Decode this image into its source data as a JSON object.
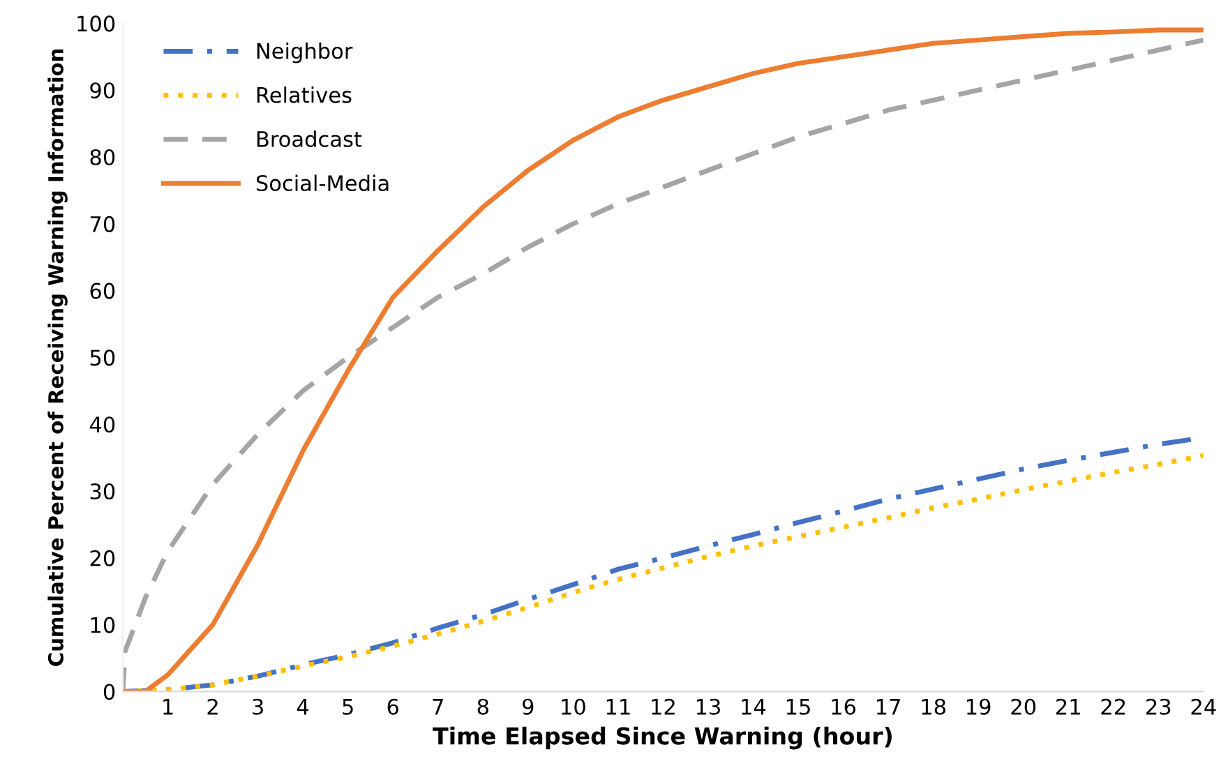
{
  "chart_data": {
    "type": "line",
    "xlabel": "Time Elapsed Since Warning (hour)",
    "ylabel": "Cumulative Percent of Receiving Warning Information",
    "xlim": [
      0,
      24
    ],
    "xticks": [
      1,
      2,
      3,
      4,
      5,
      6,
      7,
      8,
      9,
      10,
      11,
      12,
      13,
      14,
      15,
      16,
      17,
      18,
      19,
      20,
      21,
      22,
      23,
      24
    ],
    "ylim": [
      0,
      100
    ],
    "yticks": [
      0,
      10,
      20,
      30,
      40,
      50,
      60,
      70,
      80,
      90,
      100
    ],
    "grid": false,
    "legend": "top left",
    "marker": "none",
    "series": [
      {
        "name": "Neighbor",
        "color": "#4472c4",
        "line_style": "dashdot",
        "x": [
          0,
          1,
          2,
          3,
          4,
          5,
          6,
          7,
          8,
          9,
          10,
          11,
          12,
          13,
          14,
          15,
          16,
          17,
          18,
          19,
          20,
          21,
          22,
          23,
          24
        ],
        "values": [
          0,
          0.3,
          1,
          2.3,
          4,
          5.5,
          7.3,
          9.5,
          11.5,
          13.8,
          16,
          18.3,
          20,
          21.8,
          23.5,
          25.3,
          27,
          28.8,
          30.3,
          31.8,
          33.3,
          34.6,
          35.8,
          37,
          38
        ]
      },
      {
        "name": "Relatives",
        "color": "#ffc000",
        "line_style": "dotted",
        "x": [
          0,
          1,
          2,
          3,
          4,
          5,
          6,
          7,
          8,
          9,
          10,
          11,
          12,
          13,
          14,
          15,
          16,
          17,
          18,
          19,
          20,
          21,
          22,
          23,
          24
        ],
        "values": [
          0,
          0.3,
          1,
          2.3,
          3.8,
          5.2,
          6.8,
          8.6,
          10.5,
          12.6,
          14.8,
          16.8,
          18.5,
          20.2,
          21.8,
          23.2,
          24.6,
          26,
          27.5,
          28.8,
          30.2,
          31.5,
          32.8,
          34,
          35.3
        ]
      },
      {
        "name": "Broadcast",
        "color": "#a5a5a5",
        "line_style": "dashed",
        "x": [
          0,
          0.05,
          0.5,
          1,
          2,
          3,
          4,
          5,
          6,
          7,
          8,
          9,
          10,
          11,
          12,
          13,
          14,
          15,
          16,
          17,
          18,
          19,
          20,
          21,
          22,
          23,
          24
        ],
        "values": [
          0,
          6,
          14,
          21,
          31,
          38.5,
          45,
          50,
          54.5,
          59,
          62.5,
          66.5,
          70,
          73,
          75.5,
          78,
          80.5,
          83,
          85,
          87,
          88.5,
          90,
          91.5,
          93,
          94.5,
          96,
          97.5
        ]
      },
      {
        "name": "Social-Media",
        "color": "#ed7d31",
        "line_style": "solid",
        "x": [
          0,
          0.5,
          1,
          2,
          3,
          4,
          5,
          6,
          7,
          8,
          9,
          10,
          11,
          12,
          13,
          14,
          15,
          16,
          17,
          18,
          19,
          20,
          21,
          22,
          23,
          24
        ],
        "values": [
          0,
          0,
          2.5,
          10,
          22,
          36,
          48,
          59,
          66,
          72.5,
          78,
          82.5,
          86,
          88.5,
          90.5,
          92.5,
          94,
          95,
          96,
          97,
          97.5,
          98,
          98.5,
          98.7,
          99,
          99
        ]
      }
    ]
  }
}
